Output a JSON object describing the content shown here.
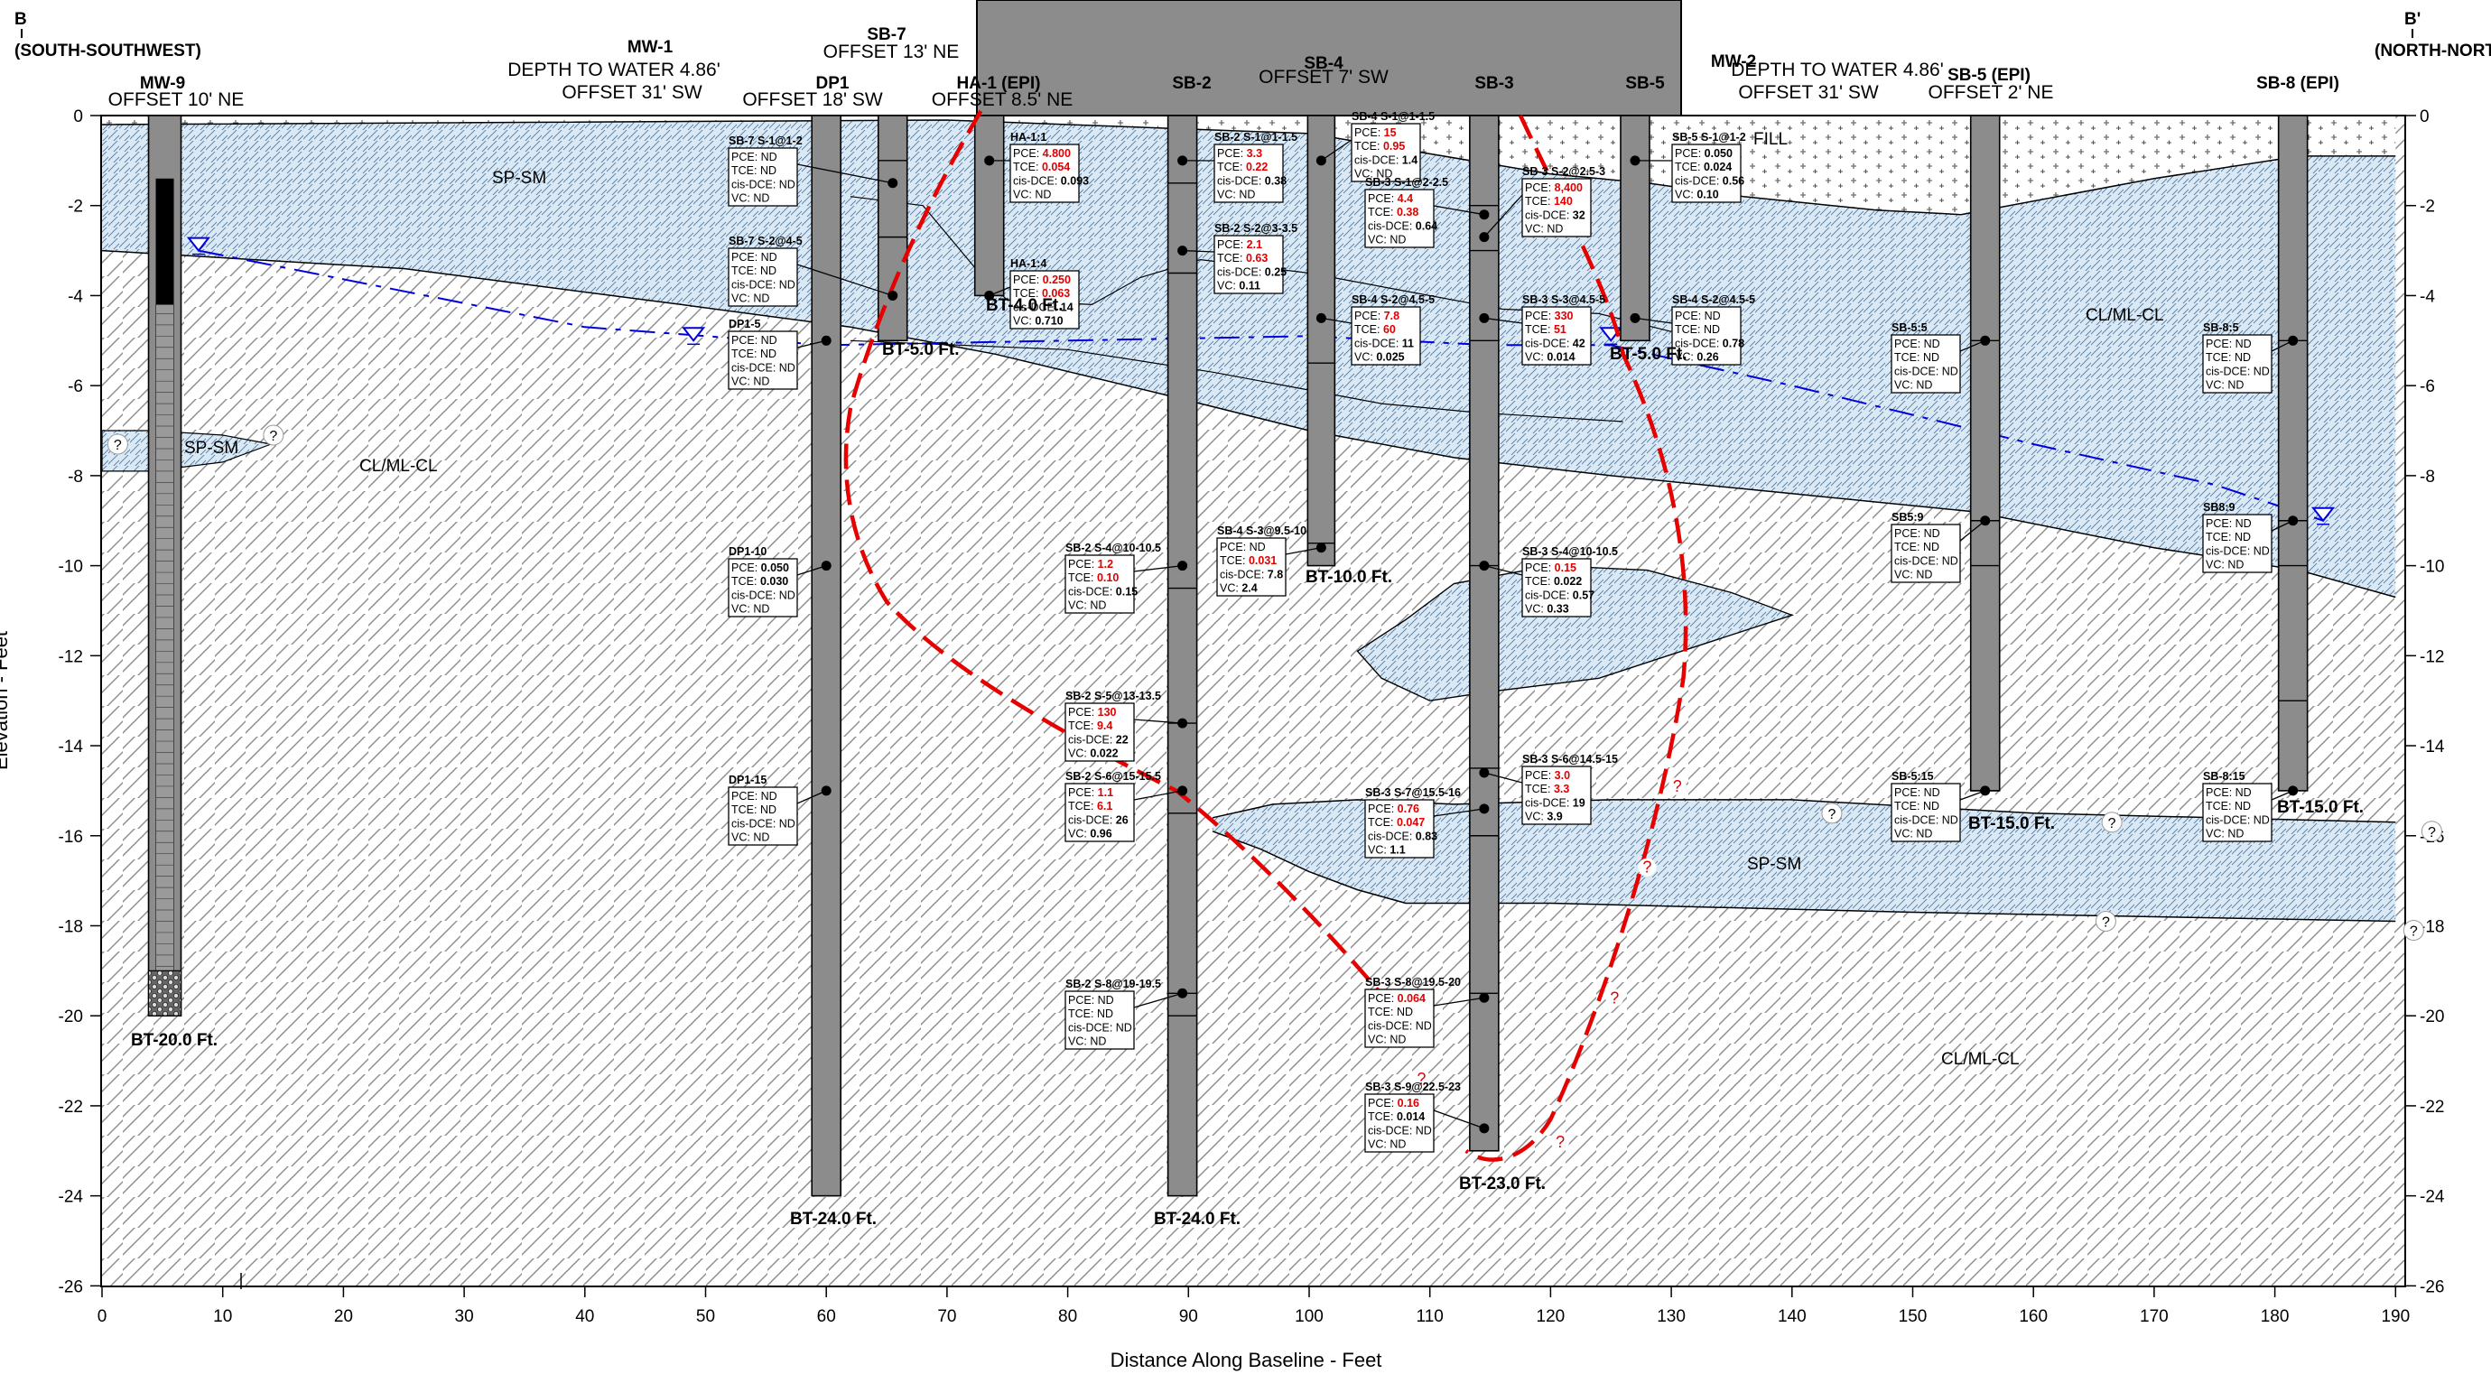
{
  "section": {
    "left_letter": "B",
    "left_dir": "(SOUTH-SOUTHWEST)",
    "right_letter": "B'",
    "right_dir": "(NORTH-NORTHEAST)"
  },
  "axes": {
    "xlabel": "Distance Along Baseline  - Feet",
    "ylabel": "Elevation  - Feet",
    "x_ticks": [
      "0",
      "10",
      "20",
      "30",
      "40",
      "50",
      "60",
      "70",
      "80",
      "90",
      "100",
      "110",
      "120",
      "130",
      "140",
      "150",
      "160",
      "170",
      "180",
      "190"
    ],
    "y_ticks_left": [
      "0",
      "-2",
      "-4",
      "-6",
      "-8",
      "-10",
      "-12",
      "-14",
      "-16",
      "-18",
      "-20",
      "-22",
      "-24",
      "-26"
    ],
    "y_ticks_right": [
      "0",
      "-2",
      "-4",
      "-6",
      "-8",
      "-10",
      "-12",
      "-14",
      "-16",
      "-18",
      "-20",
      "-22",
      "-24",
      "-26"
    ],
    "x_range": [
      0,
      190
    ],
    "y_range": [
      -26,
      0
    ]
  },
  "borings": [
    {
      "name": "MW-9",
      "offset": "OFFSET 10' NE",
      "bt": "BT-20.0 Ft."
    },
    {
      "name": "MW-1",
      "note1": "DEPTH TO WATER 4.86'",
      "note2": "OFFSET 31' SW"
    },
    {
      "name": "DP1",
      "offset": "OFFSET 18' SW",
      "bt": "BT-24.0 Ft."
    },
    {
      "name": "SB-7",
      "offset": "OFFSET 13' NE",
      "bt": "BT-5.0 Ft."
    },
    {
      "name": "HA-1 (EPI)",
      "offset": "OFFSET 8.5' NE",
      "bt": "BT-4.0 Ft."
    },
    {
      "name": "SB-2",
      "bt": "BT-24.0 Ft."
    },
    {
      "name": "SB-4",
      "offset": "OFFSET 7' SW",
      "bt": "BT-10.0 Ft."
    },
    {
      "name": "SB-3",
      "bt": "BT-23.0 Ft."
    },
    {
      "name": "SB-5",
      "bt": "BT-5.0 Ft."
    },
    {
      "name": "MW-2",
      "note1": "DEPTH TO WATER 4.86'",
      "note2": "OFFSET 31' SW"
    },
    {
      "name": "SB-5 (EPI)",
      "offset": "OFFSET 2' NE",
      "bt": "BT-15.0 Ft."
    },
    {
      "name": "SB-8 (EPI)",
      "bt": "BT-15.0 Ft."
    }
  ],
  "soils": {
    "fill": "FILL",
    "spsm": "SP-SM",
    "clml": "CL/ML-CL"
  },
  "question": "?",
  "samples": [
    {
      "title": "SB-7 S-1@1-2",
      "rows": [
        [
          "PCE:",
          "ND",
          ""
        ],
        [
          "TCE:",
          "ND",
          ""
        ],
        [
          "cis-DCE:",
          "ND",
          ""
        ],
        [
          "VC:",
          "ND",
          ""
        ]
      ]
    },
    {
      "title": "SB-7 S-2@4-5",
      "rows": [
        [
          "PCE:",
          "ND",
          ""
        ],
        [
          "TCE:",
          "ND",
          ""
        ],
        [
          "cis-DCE:",
          "ND",
          ""
        ],
        [
          "VC:",
          "ND",
          ""
        ]
      ]
    },
    {
      "title": "DP1-5",
      "rows": [
        [
          "PCE:",
          "ND",
          ""
        ],
        [
          "TCE:",
          "ND",
          ""
        ],
        [
          "cis-DCE:",
          "ND",
          ""
        ],
        [
          "VC:",
          "ND",
          ""
        ]
      ]
    },
    {
      "title": "DP1-10",
      "rows": [
        [
          "PCE:",
          "0.050",
          "b"
        ],
        [
          "TCE:",
          "0.030",
          "b"
        ],
        [
          "cis-DCE:",
          "ND",
          ""
        ],
        [
          "VC:",
          "ND",
          ""
        ]
      ]
    },
    {
      "title": "DP1-15",
      "rows": [
        [
          "PCE:",
          "ND",
          ""
        ],
        [
          "TCE:",
          "ND",
          ""
        ],
        [
          "cis-DCE:",
          "ND",
          ""
        ],
        [
          "VC:",
          "ND",
          ""
        ]
      ]
    },
    {
      "title": "HA-1:1",
      "rows": [
        [
          "PCE:",
          "4.800",
          "r"
        ],
        [
          "TCE:",
          "0.054",
          "r"
        ],
        [
          "cis-DCE:",
          "0.093",
          "b"
        ],
        [
          "VC:",
          "ND",
          ""
        ]
      ]
    },
    {
      "title": "HA-1:4",
      "rows": [
        [
          "PCE:",
          "0.250",
          "r"
        ],
        [
          "TCE:",
          "0.063",
          "r"
        ],
        [
          "cis-DCE:",
          "14",
          "b"
        ],
        [
          "VC:",
          "0.710",
          "b"
        ]
      ]
    },
    {
      "title": "SB-2 S-1@1-1.5",
      "rows": [
        [
          "PCE:",
          "3.3",
          "r"
        ],
        [
          "TCE:",
          "0.22",
          "r"
        ],
        [
          "cis-DCE:",
          "0.38",
          "b"
        ],
        [
          "VC:",
          "ND",
          ""
        ]
      ]
    },
    {
      "title": "SB-2 S-2@3-3.5",
      "rows": [
        [
          "PCE:",
          "2.1",
          "r"
        ],
        [
          "TCE:",
          "0.63",
          "r"
        ],
        [
          "cis-DCE:",
          "0.25",
          "b"
        ],
        [
          "VC:",
          "0.11",
          "b"
        ]
      ]
    },
    {
      "title": "SB-2 S-4@10-10.5",
      "rows": [
        [
          "PCE:",
          "1.2",
          "r"
        ],
        [
          "TCE:",
          "0.10",
          "r"
        ],
        [
          "cis-DCE:",
          "0.15",
          "b"
        ],
        [
          "VC:",
          "ND",
          ""
        ]
      ]
    },
    {
      "title": "SB-2 S-5@13-13.5",
      "rows": [
        [
          "PCE:",
          "130",
          "r"
        ],
        [
          "TCE:",
          "9.4",
          "r"
        ],
        [
          "cis-DCE:",
          "22",
          "b"
        ],
        [
          "VC:",
          "0.022",
          "b"
        ]
      ]
    },
    {
      "title": "SB-2 S-6@15-15.5",
      "rows": [
        [
          "PCE:",
          "1.1",
          "r"
        ],
        [
          "TCE:",
          "6.1",
          "r"
        ],
        [
          "cis-DCE:",
          "26",
          "b"
        ],
        [
          "VC:",
          "0.96",
          "b"
        ]
      ]
    },
    {
      "title": "SB-2 S-8@19-19.5",
      "rows": [
        [
          "PCE:",
          "ND",
          ""
        ],
        [
          "TCE:",
          "ND",
          ""
        ],
        [
          "cis-DCE:",
          "ND",
          ""
        ],
        [
          "VC:",
          "ND",
          ""
        ]
      ]
    },
    {
      "title": "SB-4 S-1@1-1.5",
      "rows": [
        [
          "PCE:",
          "15",
          "r"
        ],
        [
          "TCE:",
          "0.95",
          "r"
        ],
        [
          "cis-DCE:",
          "1.4",
          "b"
        ],
        [
          "VC:",
          "ND",
          ""
        ]
      ]
    },
    {
      "title": "SB-4 S-2@4.5-5",
      "rows": [
        [
          "PCE:",
          "7.8",
          "r"
        ],
        [
          "TCE:",
          "60",
          "r"
        ],
        [
          "cis-DCE:",
          "11",
          "b"
        ],
        [
          "VC:",
          "0.025",
          "b"
        ]
      ]
    },
    {
      "title": "SB-4 S-3@9.5-10",
      "rows": [
        [
          "PCE:",
          "ND",
          ""
        ],
        [
          "TCE:",
          "0.031",
          "r"
        ],
        [
          "cis-DCE:",
          "7.8",
          "b"
        ],
        [
          "VC:",
          "2.4",
          "b"
        ]
      ]
    },
    {
      "title": "SB-3 S-1@2-2.5",
      "rows": [
        [
          "PCE:",
          "4.4",
          "r"
        ],
        [
          "TCE:",
          "0.38",
          "r"
        ],
        [
          "cis-DCE:",
          "0.64",
          "b"
        ],
        [
          "VC:",
          "ND",
          ""
        ]
      ]
    },
    {
      "title": "SB-3 S-2@2.5-3",
      "rows": [
        [
          "PCE:",
          "8,400",
          "r"
        ],
        [
          "TCE:",
          "140",
          "r"
        ],
        [
          "cis-DCE:",
          "32",
          "b"
        ],
        [
          "VC:",
          "ND",
          ""
        ]
      ]
    },
    {
      "title": "SB-3 S-3@4.5-5",
      "rows": [
        [
          "PCE:",
          "330",
          "r"
        ],
        [
          "TCE:",
          "51",
          "r"
        ],
        [
          "cis-DCE:",
          "42",
          "b"
        ],
        [
          "VC:",
          "0.014",
          "b"
        ]
      ]
    },
    {
      "title": "SB-3 S-4@10-10.5",
      "rows": [
        [
          "PCE:",
          "0.15",
          "r"
        ],
        [
          "TCE:",
          "0.022",
          "b"
        ],
        [
          "cis-DCE:",
          "0.57",
          "b"
        ],
        [
          "VC:",
          "0.33",
          "b"
        ]
      ]
    },
    {
      "title": "SB-3 S-6@14.5-15",
      "rows": [
        [
          "PCE:",
          "3.0",
          "r"
        ],
        [
          "TCE:",
          "3.3",
          "r"
        ],
        [
          "cis-DCE:",
          "19",
          "b"
        ],
        [
          "VC:",
          "3.9",
          "b"
        ]
      ]
    },
    {
      "title": "SB-3 S-7@15.5-16",
      "rows": [
        [
          "PCE:",
          "0.76",
          "r"
        ],
        [
          "TCE:",
          "0.047",
          "r"
        ],
        [
          "cis-DCE:",
          "0.83",
          "b"
        ],
        [
          "VC:",
          "1.1",
          "b"
        ]
      ]
    },
    {
      "title": "SB-3 S-8@19.5-20",
      "rows": [
        [
          "PCE:",
          "0.064",
          "r"
        ],
        [
          "TCE:",
          "ND",
          ""
        ],
        [
          "cis-DCE:",
          "ND",
          ""
        ],
        [
          "VC:",
          "ND",
          ""
        ]
      ]
    },
    {
      "title": "SB-3 S-9@22.5-23",
      "rows": [
        [
          "PCE:",
          "0.16",
          "r"
        ],
        [
          "TCE:",
          "0.014",
          "b"
        ],
        [
          "cis-DCE:",
          "ND",
          ""
        ],
        [
          "VC:",
          "ND",
          ""
        ]
      ]
    },
    {
      "title": "SB-5 S-1@1-2",
      "rows": [
        [
          "PCE:",
          "0.050",
          "b"
        ],
        [
          "TCE:",
          "0.024",
          "b"
        ],
        [
          "cis-DCE:",
          "0.56",
          "b"
        ],
        [
          "VC:",
          "0.10",
          "b"
        ]
      ]
    },
    {
      "title": "SB-4 S-2@4.5-5",
      "rows": [
        [
          "PCE:",
          "ND",
          ""
        ],
        [
          "TCE:",
          "ND",
          ""
        ],
        [
          "cis-DCE:",
          "0.78",
          "b"
        ],
        [
          "VC:",
          "0.26",
          "b"
        ]
      ]
    },
    {
      "title": "SB-5:5",
      "rows": [
        [
          "PCE:",
          "ND",
          ""
        ],
        [
          "TCE:",
          "ND",
          ""
        ],
        [
          "cis-DCE:",
          "ND",
          ""
        ],
        [
          "VC:",
          "ND",
          ""
        ]
      ]
    },
    {
      "title": "SB5:9",
      "rows": [
        [
          "PCE:",
          "ND",
          ""
        ],
        [
          "TCE:",
          "ND",
          ""
        ],
        [
          "cis-DCE:",
          "ND",
          ""
        ],
        [
          "VC:",
          "ND",
          ""
        ]
      ]
    },
    {
      "title": "SB-5:15",
      "rows": [
        [
          "PCE:",
          "ND",
          ""
        ],
        [
          "TCE:",
          "ND",
          ""
        ],
        [
          "cis-DCE:",
          "ND",
          ""
        ],
        [
          "VC:",
          "ND",
          ""
        ]
      ]
    },
    {
      "title": "SB-8:5",
      "rows": [
        [
          "PCE:",
          "ND",
          ""
        ],
        [
          "TCE:",
          "ND",
          ""
        ],
        [
          "cis-DCE:",
          "ND",
          ""
        ],
        [
          "VC:",
          "ND",
          ""
        ]
      ]
    },
    {
      "title": "SB8:9",
      "rows": [
        [
          "PCE:",
          "ND",
          ""
        ],
        [
          "TCE:",
          "ND",
          ""
        ],
        [
          "cis-DCE:",
          "ND",
          ""
        ],
        [
          "VC:",
          "ND",
          ""
        ]
      ]
    },
    {
      "title": "SB-8:15",
      "rows": [
        [
          "PCE:",
          "ND",
          ""
        ],
        [
          "TCE:",
          "ND",
          ""
        ],
        [
          "cis-DCE:",
          "ND",
          ""
        ],
        [
          "VC:",
          "ND",
          ""
        ]
      ]
    }
  ],
  "colors": {
    "sand_fill": "#dbe9f4",
    "plume": "#e60000",
    "water_table": "#0000dd",
    "boring": "#8c8c8c"
  }
}
